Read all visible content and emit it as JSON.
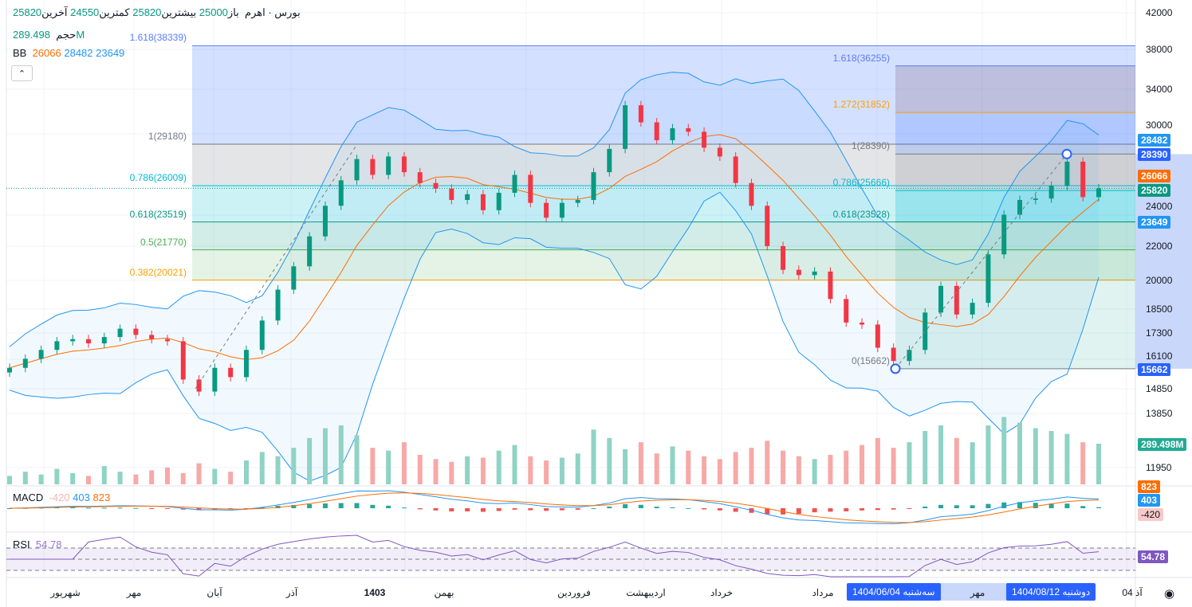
{
  "header": {
    "symbol": "بورس · اهرم",
    "open_label": "باز",
    "open": "25000",
    "high_label": "بیشترین",
    "high": "25820",
    "low_label": "کمترین",
    "low": "24550",
    "close_label": "آخرین",
    "close": "25820"
  },
  "volume_legend": {
    "label": "حجم",
    "value": "289.498M"
  },
  "bb_legend": {
    "label": "BB",
    "basis": "26066",
    "upper": "28482",
    "lower": "23649"
  },
  "macd_legend": {
    "label": "MACD",
    "hist": "-420",
    "macd": "403",
    "signal": "823"
  },
  "rsi_legend": {
    "label": "RSI",
    "value": "54.78"
  },
  "fib_left": [
    {
      "label": "1.618(38339)",
      "price": 38339,
      "color": "#5b7cfa"
    },
    {
      "label": "1(29180)",
      "price": 29180,
      "color": "#787b86"
    },
    {
      "label": "0.786(26009)",
      "price": 26009,
      "color": "#00bcd4"
    },
    {
      "label": "0.618(23519)",
      "price": 23519,
      "color": "#089981"
    },
    {
      "label": "0.5(21770)",
      "price": 21770,
      "color": "#4caf50"
    },
    {
      "label": "0.382(20021)",
      "price": 20021,
      "color": "#f7a000"
    }
  ],
  "fib_right": [
    {
      "label": "1.618(36255)",
      "price": 36255,
      "color": "#5b7cfa"
    },
    {
      "label": "1.272(31852)",
      "price": 31852,
      "color": "#f7a000"
    },
    {
      "label": "1(28390)",
      "price": 28390,
      "color": "#787b86"
    },
    {
      "label": "0.786(25666)",
      "price": 25666,
      "color": "#00bcd4"
    },
    {
      "label": "0.618(23528)",
      "price": 23528,
      "color": "#089981"
    },
    {
      "label": "0(15662)",
      "price": 15662,
      "color": "#787b86"
    }
  ],
  "price_axis": [
    "42000",
    "38000",
    "34000",
    "30000",
    "24000",
    "22000",
    "20000",
    "18500",
    "17300",
    "16100",
    "14850",
    "13850",
    "11950"
  ],
  "price_badges": [
    {
      "value": "28482",
      "color": "#2196f3"
    },
    {
      "value": "28390",
      "color": "#2962ff"
    },
    {
      "value": "26066",
      "color": "#ff6d00"
    },
    {
      "value": "25820",
      "color": "#089981"
    },
    {
      "value": "23649",
      "color": "#2196f3"
    },
    {
      "value": "15662",
      "color": "#2962ff"
    },
    {
      "value": "289.498M",
      "color": "#22ab94"
    }
  ],
  "indicator_badges": [
    {
      "value": "823",
      "color": "#ff6d00"
    },
    {
      "value": "403",
      "color": "#2196f3"
    },
    {
      "value": "-420",
      "color": "#f8c9c9"
    },
    {
      "value": "54.78",
      "color": "#7e57c2"
    }
  ],
  "time_axis": [
    "شهریور",
    "مهر",
    "آبان",
    "آذر",
    "1403",
    "بهمن",
    "فروردین",
    "اردیبهشت",
    "خرداد",
    "مرداد",
    "مهر",
    "04 آذ"
  ],
  "time_badges": [
    "سه‌شنبه 1404/06/04",
    "دوشنبه 1404/08/12"
  ],
  "colors": {
    "up": "#089981",
    "down": "#f23645",
    "bb_basis": "#ff6d00",
    "bb_band": "#2196f3",
    "rsi": "#7e57c2"
  },
  "chart_data": {
    "type": "candlestick",
    "scale": "log",
    "ylim": [
      11500,
      42000
    ],
    "closes": [
      15700,
      16100,
      16500,
      16900,
      17000,
      16800,
      17100,
      17500,
      17200,
      17000,
      16900,
      15200,
      14700,
      15700,
      15300,
      16500,
      17900,
      19500,
      20800,
      22600,
      24600,
      26400,
      28000,
      26800,
      28200,
      27000,
      26200,
      25800,
      25000,
      25400,
      24300,
      25500,
      26800,
      24800,
      23800,
      24800,
      25000,
      27000,
      28800,
      32500,
      31000,
      29500,
      30500,
      30200,
      28900,
      28200,
      26200,
      24600,
      22000,
      20600,
      20300,
      20500,
      19000,
      17800,
      17700,
      16600,
      16000,
      16500,
      18300,
      19700,
      18200,
      18800,
      21500,
      24000,
      25000,
      25100,
      26000,
      27800,
      25200,
      25820
    ],
    "volumes_m": [
      60,
      90,
      70,
      110,
      80,
      60,
      130,
      90,
      70,
      100,
      120,
      80,
      150,
      110,
      90,
      170,
      230,
      200,
      260,
      330,
      400,
      420,
      350,
      260,
      240,
      300,
      210,
      180,
      160,
      200,
      190,
      240,
      280,
      200,
      170,
      190,
      220,
      390,
      330,
      250,
      300,
      220,
      270,
      240,
      200,
      180,
      230,
      260,
      310,
      240,
      200,
      180,
      210,
      240,
      280,
      330,
      260,
      300,
      380,
      420,
      330,
      300,
      420,
      480,
      440,
      400,
      380,
      360,
      300,
      289.498
    ],
    "xlabel_ticks": [
      "شهریور",
      "مهر",
      "آبان",
      "آذر",
      "1403",
      "بهمن",
      "فروردین",
      "اردیبهشت",
      "خرداد",
      "مرداد",
      "مهر",
      "04 آذ"
    ]
  }
}
